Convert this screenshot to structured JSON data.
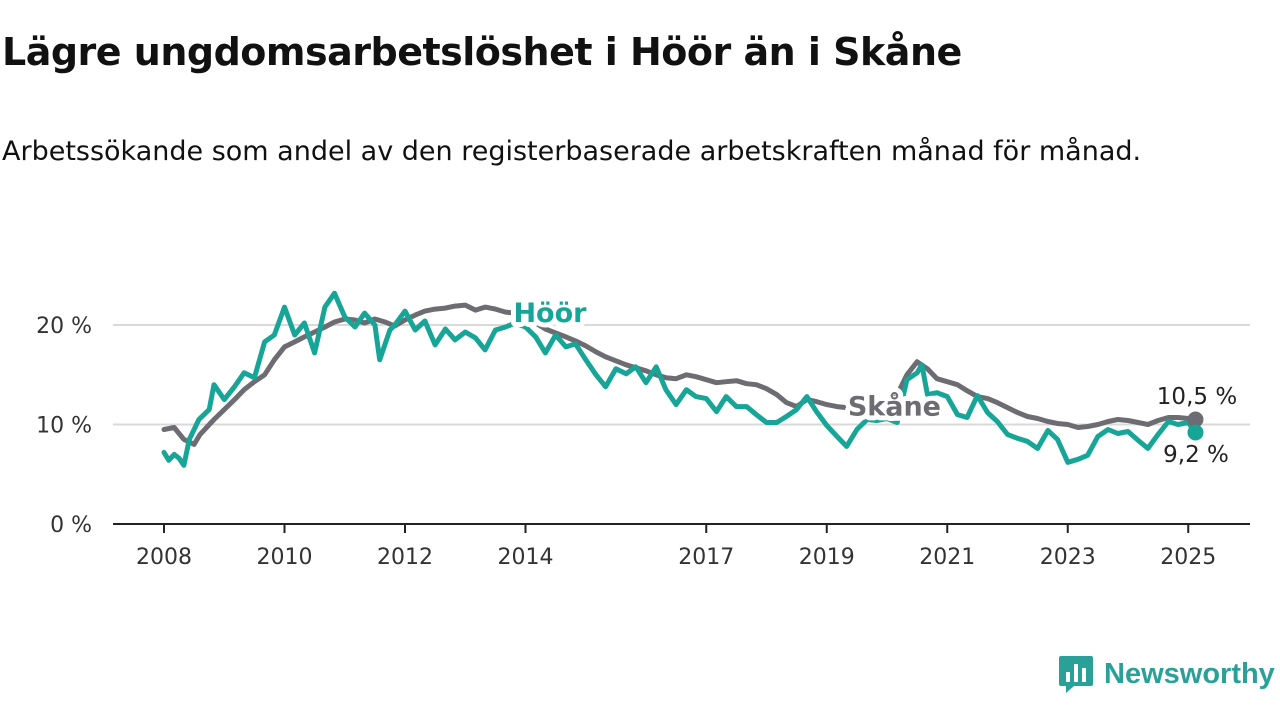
{
  "header": {
    "title": "Lägre ungdomsarbetslöshet i Höör än i Skåne",
    "subtitle": "Arbetssökande som andel av den registerbaserade arbetskraften månad för månad."
  },
  "brand": {
    "name": "Newsworthy",
    "icon": "bar-chart-speech-bubble-icon"
  },
  "colors": {
    "hoor": "#16a597",
    "skane": "#6d6c72",
    "grid": "#d9d9d9",
    "axis": "#222222"
  },
  "chart_data": {
    "type": "line",
    "title": "Lägre ungdomsarbetslöshet i Höör än i Skåne",
    "x_unit": "year",
    "xlim": [
      2007.7,
      2026.0
    ],
    "ylim": [
      0,
      23
    ],
    "y_ticks": [
      0,
      10,
      20
    ],
    "y_tick_labels": [
      "0 %",
      "10 %",
      "20 %"
    ],
    "x_ticks": [
      2008,
      2010,
      2012,
      2014,
      2017,
      2019,
      2021,
      2023,
      2025
    ],
    "x_tick_labels": [
      "2008",
      "2010",
      "2012",
      "2014",
      "2017",
      "2019",
      "2021",
      "2023",
      "2025"
    ],
    "grid": true,
    "series": [
      {
        "name": "Skåne",
        "color": "#6d6c72",
        "end_label": "10,5 %",
        "points": [
          [
            2008.0,
            9.5
          ],
          [
            2008.17,
            9.7
          ],
          [
            2008.33,
            8.5
          ],
          [
            2008.5,
            8.0
          ],
          [
            2008.6,
            9.0
          ],
          [
            2008.83,
            10.5
          ],
          [
            2009.0,
            11.5
          ],
          [
            2009.17,
            12.5
          ],
          [
            2009.33,
            13.5
          ],
          [
            2009.5,
            14.3
          ],
          [
            2009.67,
            15.0
          ],
          [
            2009.83,
            16.5
          ],
          [
            2010.0,
            17.8
          ],
          [
            2010.17,
            18.3
          ],
          [
            2010.33,
            18.8
          ],
          [
            2010.5,
            19.3
          ],
          [
            2010.67,
            19.8
          ],
          [
            2010.83,
            20.3
          ],
          [
            2011.0,
            20.6
          ],
          [
            2011.17,
            20.5
          ],
          [
            2011.33,
            20.2
          ],
          [
            2011.5,
            20.6
          ],
          [
            2011.67,
            20.3
          ],
          [
            2011.83,
            19.9
          ],
          [
            2012.0,
            20.5
          ],
          [
            2012.17,
            21.0
          ],
          [
            2012.33,
            21.4
          ],
          [
            2012.5,
            21.6
          ],
          [
            2012.67,
            21.7
          ],
          [
            2012.83,
            21.9
          ],
          [
            2013.0,
            22.0
          ],
          [
            2013.17,
            21.5
          ],
          [
            2013.33,
            21.8
          ],
          [
            2013.5,
            21.6
          ],
          [
            2013.67,
            21.3
          ],
          [
            2013.83,
            21.2
          ],
          [
            2014.0,
            21.0
          ],
          [
            2014.17,
            20.2
          ],
          [
            2014.33,
            19.6
          ],
          [
            2014.5,
            19.2
          ],
          [
            2014.67,
            18.8
          ],
          [
            2014.83,
            18.4
          ],
          [
            2015.0,
            17.9
          ],
          [
            2015.17,
            17.3
          ],
          [
            2015.33,
            16.8
          ],
          [
            2015.5,
            16.4
          ],
          [
            2015.67,
            16.0
          ],
          [
            2015.83,
            15.7
          ],
          [
            2016.0,
            15.4
          ],
          [
            2016.17,
            15.0
          ],
          [
            2016.33,
            14.7
          ],
          [
            2016.5,
            14.6
          ],
          [
            2016.67,
            15.0
          ],
          [
            2016.83,
            14.8
          ],
          [
            2017.0,
            14.5
          ],
          [
            2017.17,
            14.2
          ],
          [
            2017.33,
            14.3
          ],
          [
            2017.5,
            14.4
          ],
          [
            2017.67,
            14.1
          ],
          [
            2017.83,
            14.0
          ],
          [
            2018.0,
            13.6
          ],
          [
            2018.17,
            13.0
          ],
          [
            2018.33,
            12.2
          ],
          [
            2018.5,
            11.8
          ],
          [
            2018.67,
            12.5
          ],
          [
            2018.83,
            12.3
          ],
          [
            2019.0,
            12.0
          ],
          [
            2019.17,
            11.8
          ],
          [
            2019.33,
            11.7
          ],
          [
            2019.5,
            11.9
          ],
          [
            2019.67,
            12.2
          ],
          [
            2019.83,
            12.0
          ],
          [
            2020.0,
            12.2
          ],
          [
            2020.17,
            13.0
          ],
          [
            2020.33,
            15.0
          ],
          [
            2020.5,
            16.3
          ],
          [
            2020.67,
            15.6
          ],
          [
            2020.83,
            14.6
          ],
          [
            2021.0,
            14.3
          ],
          [
            2021.17,
            14.0
          ],
          [
            2021.33,
            13.4
          ],
          [
            2021.5,
            12.8
          ],
          [
            2021.67,
            12.6
          ],
          [
            2021.83,
            12.2
          ],
          [
            2022.0,
            11.7
          ],
          [
            2022.17,
            11.2
          ],
          [
            2022.33,
            10.8
          ],
          [
            2022.5,
            10.6
          ],
          [
            2022.67,
            10.3
          ],
          [
            2022.83,
            10.1
          ],
          [
            2023.0,
            10.0
          ],
          [
            2023.17,
            9.7
          ],
          [
            2023.33,
            9.8
          ],
          [
            2023.5,
            10.0
          ],
          [
            2023.67,
            10.3
          ],
          [
            2023.83,
            10.5
          ],
          [
            2024.0,
            10.4
          ],
          [
            2024.17,
            10.2
          ],
          [
            2024.33,
            10.0
          ],
          [
            2024.5,
            10.4
          ],
          [
            2024.67,
            10.7
          ],
          [
            2024.83,
            10.7
          ],
          [
            2025.0,
            10.6
          ],
          [
            2025.12,
            10.5
          ]
        ]
      },
      {
        "name": "Höör",
        "color": "#16a597",
        "end_label": "9,2 %",
        "points": [
          [
            2008.0,
            7.2
          ],
          [
            2008.08,
            6.4
          ],
          [
            2008.17,
            7.0
          ],
          [
            2008.25,
            6.6
          ],
          [
            2008.33,
            5.9
          ],
          [
            2008.42,
            8.5
          ],
          [
            2008.58,
            10.5
          ],
          [
            2008.75,
            11.5
          ],
          [
            2008.83,
            14.0
          ],
          [
            2009.0,
            12.5
          ],
          [
            2009.17,
            13.8
          ],
          [
            2009.33,
            15.2
          ],
          [
            2009.5,
            14.7
          ],
          [
            2009.67,
            18.3
          ],
          [
            2009.83,
            19.0
          ],
          [
            2010.0,
            21.8
          ],
          [
            2010.17,
            19.0
          ],
          [
            2010.33,
            20.2
          ],
          [
            2010.5,
            17.2
          ],
          [
            2010.67,
            21.8
          ],
          [
            2010.83,
            23.2
          ],
          [
            2011.0,
            20.8
          ],
          [
            2011.17,
            19.8
          ],
          [
            2011.33,
            21.2
          ],
          [
            2011.5,
            20.0
          ],
          [
            2011.58,
            16.5
          ],
          [
            2011.75,
            19.5
          ],
          [
            2011.83,
            20.0
          ],
          [
            2012.0,
            21.4
          ],
          [
            2012.17,
            19.5
          ],
          [
            2012.33,
            20.4
          ],
          [
            2012.5,
            18.0
          ],
          [
            2012.67,
            19.6
          ],
          [
            2012.83,
            18.5
          ],
          [
            2013.0,
            19.3
          ],
          [
            2013.17,
            18.7
          ],
          [
            2013.33,
            17.5
          ],
          [
            2013.5,
            19.5
          ],
          [
            2013.67,
            19.8
          ],
          [
            2013.83,
            20.2
          ],
          [
            2014.0,
            19.8
          ],
          [
            2014.17,
            18.8
          ],
          [
            2014.33,
            17.2
          ],
          [
            2014.5,
            19.0
          ],
          [
            2014.67,
            17.8
          ],
          [
            2014.83,
            18.1
          ],
          [
            2015.0,
            16.5
          ],
          [
            2015.17,
            15.0
          ],
          [
            2015.33,
            13.8
          ],
          [
            2015.5,
            15.6
          ],
          [
            2015.67,
            15.1
          ],
          [
            2015.83,
            15.8
          ],
          [
            2016.0,
            14.2
          ],
          [
            2016.17,
            15.8
          ],
          [
            2016.33,
            13.5
          ],
          [
            2016.5,
            12.0
          ],
          [
            2016.67,
            13.5
          ],
          [
            2016.83,
            12.8
          ],
          [
            2017.0,
            12.6
          ],
          [
            2017.17,
            11.3
          ],
          [
            2017.33,
            12.8
          ],
          [
            2017.5,
            11.8
          ],
          [
            2017.67,
            11.8
          ],
          [
            2017.83,
            11.0
          ],
          [
            2018.0,
            10.2
          ],
          [
            2018.17,
            10.2
          ],
          [
            2018.33,
            10.8
          ],
          [
            2018.5,
            11.5
          ],
          [
            2018.67,
            12.8
          ],
          [
            2018.83,
            11.3
          ],
          [
            2019.0,
            9.9
          ],
          [
            2019.17,
            8.8
          ],
          [
            2019.33,
            7.8
          ],
          [
            2019.5,
            9.5
          ],
          [
            2019.67,
            10.5
          ],
          [
            2019.83,
            10.4
          ],
          [
            2020.0,
            10.6
          ],
          [
            2020.17,
            10.2
          ],
          [
            2020.33,
            14.5
          ],
          [
            2020.5,
            15.2
          ],
          [
            2020.58,
            16.0
          ],
          [
            2020.67,
            13.0
          ],
          [
            2020.83,
            13.2
          ],
          [
            2021.0,
            12.8
          ],
          [
            2021.17,
            11.0
          ],
          [
            2021.33,
            10.7
          ],
          [
            2021.5,
            12.9
          ],
          [
            2021.67,
            11.2
          ],
          [
            2021.83,
            10.3
          ],
          [
            2022.0,
            9.0
          ],
          [
            2022.17,
            8.6
          ],
          [
            2022.33,
            8.3
          ],
          [
            2022.5,
            7.6
          ],
          [
            2022.67,
            9.4
          ],
          [
            2022.83,
            8.5
          ],
          [
            2023.0,
            6.2
          ],
          [
            2023.17,
            6.5
          ],
          [
            2023.33,
            6.9
          ],
          [
            2023.5,
            8.8
          ],
          [
            2023.67,
            9.5
          ],
          [
            2023.83,
            9.1
          ],
          [
            2024.0,
            9.3
          ],
          [
            2024.17,
            8.4
          ],
          [
            2024.33,
            7.6
          ],
          [
            2024.5,
            9.0
          ],
          [
            2024.67,
            10.3
          ],
          [
            2024.83,
            10.0
          ],
          [
            2025.0,
            10.2
          ],
          [
            2025.12,
            9.2
          ]
        ]
      }
    ],
    "annotations": [
      {
        "text": "Höör",
        "series": "Höör",
        "x": 2013.8,
        "y": 20.3
      },
      {
        "text": "Skåne",
        "series": "Skåne",
        "x": 2019.35,
        "y": 10.9
      }
    ]
  }
}
